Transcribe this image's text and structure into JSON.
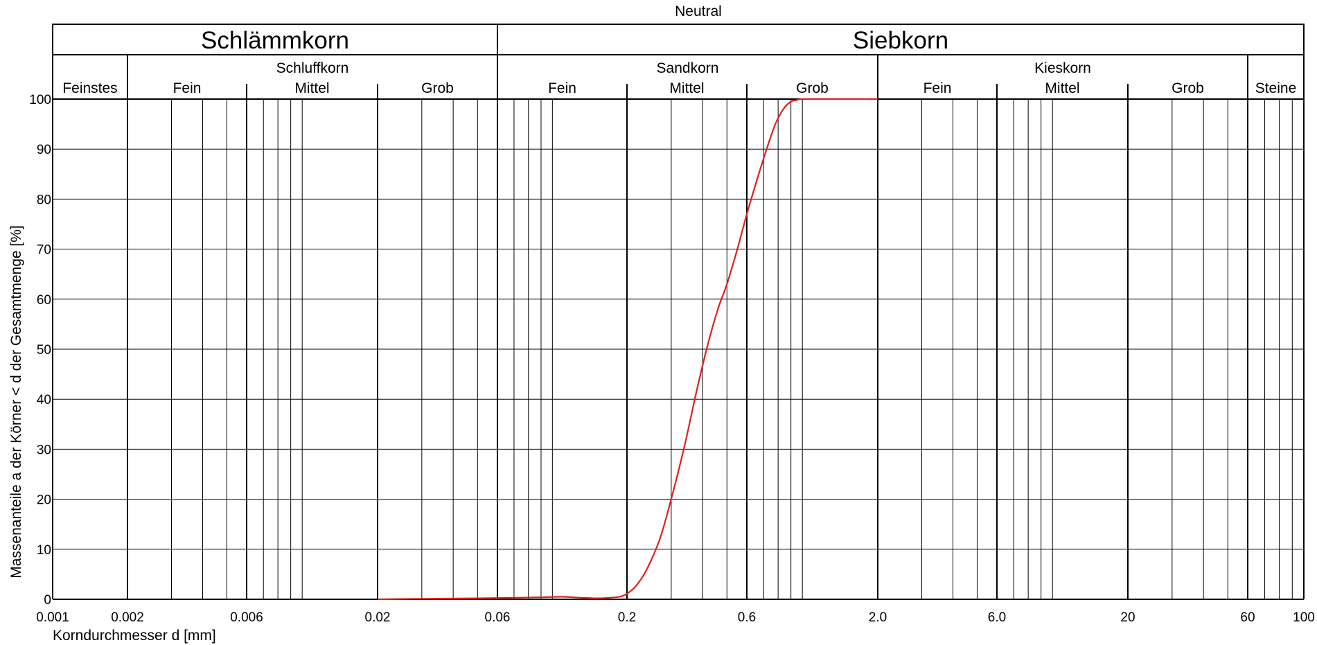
{
  "chart_data": {
    "type": "line",
    "title": "Neutral",
    "xlabel": "Korndurchmesser d [mm]",
    "ylabel": "Massenanteile a der Körner < d der Gesamtmenge [%]",
    "x_scale": "log",
    "xlim": [
      0.001,
      100
    ],
    "ylim": [
      0,
      100
    ],
    "x_tick_labels": [
      "0.001",
      "0.002",
      "0.006",
      "0.02",
      "0.06",
      "0.2",
      "0.6",
      "2.0",
      "6.0",
      "20",
      "60",
      "100"
    ],
    "x_tick_values": [
      0.001,
      0.002,
      0.006,
      0.02,
      0.06,
      0.2,
      0.6,
      2.0,
      6.0,
      20,
      60,
      100
    ],
    "y_ticks": [
      0,
      10,
      20,
      30,
      40,
      50,
      60,
      70,
      80,
      90,
      100
    ],
    "grid": true,
    "header": {
      "main_groups": [
        {
          "label": "Schlämmkorn",
          "from": 0.001,
          "to": 0.06
        },
        {
          "label": "Siebkorn",
          "from": 0.06,
          "to": 100
        }
      ],
      "sub_groups": [
        {
          "label": "",
          "from": 0.001,
          "to": 0.002
        },
        {
          "label": "Schluffkorn",
          "from": 0.002,
          "to": 0.06
        },
        {
          "label": "Sandkorn",
          "from": 0.06,
          "to": 2.0
        },
        {
          "label": "Kieskorn",
          "from": 2.0,
          "to": 60
        },
        {
          "label": "",
          "from": 60,
          "to": 100
        }
      ],
      "fractions": [
        {
          "label": "Feinstes",
          "from": 0.001,
          "to": 0.002
        },
        {
          "label": "Fein",
          "from": 0.002,
          "to": 0.006
        },
        {
          "label": "Mittel",
          "from": 0.006,
          "to": 0.02
        },
        {
          "label": "Grob",
          "from": 0.02,
          "to": 0.06
        },
        {
          "label": "Fein",
          "from": 0.06,
          "to": 0.2
        },
        {
          "label": "Mittel",
          "from": 0.2,
          "to": 0.6
        },
        {
          "label": "Grob",
          "from": 0.6,
          "to": 2.0
        },
        {
          "label": "Fein",
          "from": 2.0,
          "to": 6.0
        },
        {
          "label": "Mittel",
          "from": 6.0,
          "to": 20
        },
        {
          "label": "Grob",
          "from": 20,
          "to": 60
        },
        {
          "label": "Steine",
          "from": 60,
          "to": 100
        }
      ]
    },
    "series": [
      {
        "color": "#e0201b",
        "x": [
          0.02,
          0.03,
          0.05,
          0.07,
          0.09,
          0.11,
          0.13,
          0.15,
          0.17,
          0.19,
          0.205,
          0.22,
          0.24,
          0.27,
          0.3,
          0.34,
          0.38,
          0.42,
          0.46,
          0.5,
          0.55,
          0.6,
          0.66,
          0.72,
          0.78,
          0.84,
          0.9,
          0.95,
          1.0,
          1.2,
          1.5,
          2.0
        ],
        "y": [
          0,
          0.1,
          0.2,
          0.3,
          0.4,
          0.5,
          0.3,
          0.2,
          0.3,
          0.6,
          1.5,
          3,
          6,
          12,
          20,
          31,
          42,
          51,
          58,
          63,
          70,
          77,
          84,
          90,
          95,
          98,
          99.5,
          99.8,
          100,
          100,
          100,
          100
        ]
      }
    ]
  }
}
